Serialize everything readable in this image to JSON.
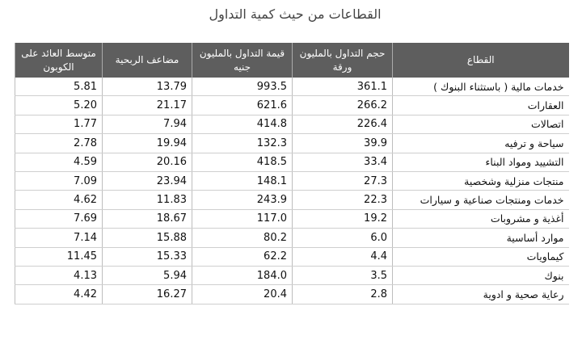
{
  "title": "القطاعات من حيث كمية التداول",
  "table": {
    "headers": [
      "القطاع",
      "حجم التداول بالمليون ورقة",
      "قيمة التداول بالمليون جنيه",
      "مضاعف الربحية",
      "متوسط العائد على الكوبون"
    ],
    "rows": [
      [
        "خدمات مالية ( باستثناء البنوك )",
        "361.1",
        "993.5",
        "13.79",
        "5.81"
      ],
      [
        "العقارات",
        "266.2",
        "621.6",
        "21.17",
        "5.20"
      ],
      [
        "اتصالات",
        "226.4",
        "414.8",
        "7.94",
        "1.77"
      ],
      [
        "سياحة و ترفيه",
        "39.9",
        "132.3",
        "19.94",
        "2.78"
      ],
      [
        "التشييد ومواد البناء",
        "33.4",
        "418.5",
        "20.16",
        "4.59"
      ],
      [
        "منتجات منزلية وشخصية",
        "27.3",
        "148.1",
        "23.94",
        "7.09"
      ],
      [
        "خدمات ومنتجات صناعية و سيارات",
        "22.3",
        "243.9",
        "11.83",
        "4.62"
      ],
      [
        "أغذية و مشروبات",
        "19.2",
        "117.0",
        "18.67",
        "7.69"
      ],
      [
        "موارد أساسية",
        "6.0",
        "80.2",
        "15.88",
        "7.14"
      ],
      [
        "كيماويات",
        "4.4",
        "62.2",
        "15.33",
        "11.45"
      ],
      [
        "بنوك",
        "3.5",
        "184.0",
        "5.94",
        "4.13"
      ],
      [
        "رعاية صحية و ادوية",
        "2.8",
        "20.4",
        "16.27",
        "4.42"
      ]
    ]
  },
  "colors": {
    "header_bg": "#5e5e5e",
    "header_text": "#ffffff",
    "row_border": "#cfcfcf"
  }
}
